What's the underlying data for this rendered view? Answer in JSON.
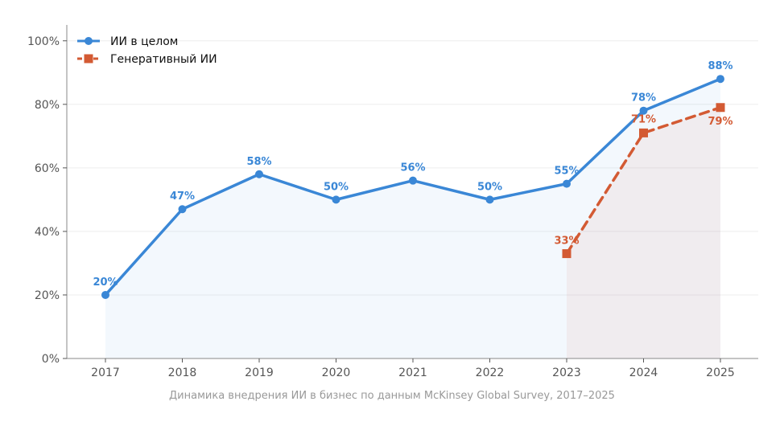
{
  "chart_data": {
    "type": "line",
    "x": [
      "2017",
      "2018",
      "2019",
      "2020",
      "2021",
      "2022",
      "2023",
      "2024",
      "2025"
    ],
    "ylim": [
      0,
      105
    ],
    "yticks": [
      0,
      20,
      40,
      60,
      80,
      100
    ],
    "y_tick_suffix": "%",
    "grid": "horizontal",
    "legend_position": "top-left",
    "caption": "Динамика внедрения ИИ в бизнес по данным McKinsey Global Survey, 2017–2025",
    "series": [
      {
        "name": "ИИ в целом",
        "color": "#3a87d6",
        "marker": "circle",
        "line_style": "solid",
        "values": [
          20,
          47,
          58,
          50,
          56,
          50,
          55,
          78,
          88
        ],
        "labels": [
          "20%",
          "47%",
          "58%",
          "50%",
          "56%",
          "50%",
          "55%",
          "78%",
          "88%"
        ]
      },
      {
        "name": "Генеративный ИИ",
        "color": "#d35a33",
        "marker": "square",
        "line_style": "dashed",
        "values": [
          null,
          null,
          null,
          null,
          null,
          null,
          33,
          71,
          79
        ],
        "labels": [
          null,
          null,
          null,
          null,
          null,
          null,
          "33%",
          "71%",
          "79%"
        ]
      }
    ]
  }
}
